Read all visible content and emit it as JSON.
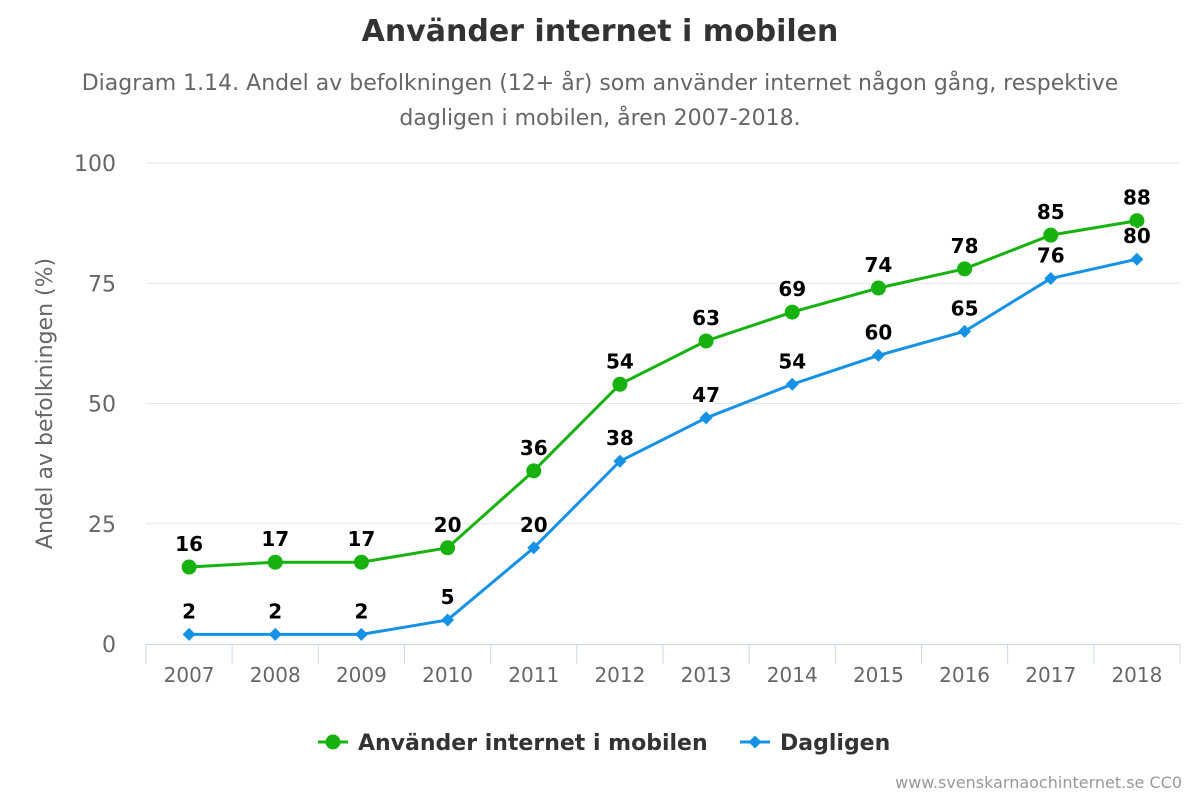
{
  "chart_data": {
    "type": "line",
    "title": "Använder internet i mobilen",
    "subtitle": "Diagram 1.14. Andel av befolkningen (12+ år) som använder internet någon gång, respektive dagligen i mobilen, åren 2007-2018.",
    "xlabel": "",
    "ylabel": "Andel av befolkningen (%)",
    "ylim": [
      0,
      100
    ],
    "yticks": [
      "0",
      "25",
      "50",
      "75",
      "100"
    ],
    "categories": [
      "2007",
      "2008",
      "2009",
      "2010",
      "2011",
      "2012",
      "2013",
      "2014",
      "2015",
      "2016",
      "2017",
      "2018"
    ],
    "series": [
      {
        "name": "Använder internet i mobilen",
        "color": "#17b20f",
        "marker": "circle",
        "values": [
          16,
          17,
          17,
          20,
          36,
          54,
          63,
          69,
          74,
          78,
          85,
          88
        ]
      },
      {
        "name": "Dagligen",
        "color": "#1592e6",
        "marker": "diamond",
        "values": [
          2,
          2,
          2,
          5,
          20,
          38,
          47,
          54,
          60,
          65,
          76,
          80
        ]
      }
    ],
    "grid": true,
    "legend": "bottom-center"
  },
  "credit": "www.svenskarnaochinternet.se CC0"
}
